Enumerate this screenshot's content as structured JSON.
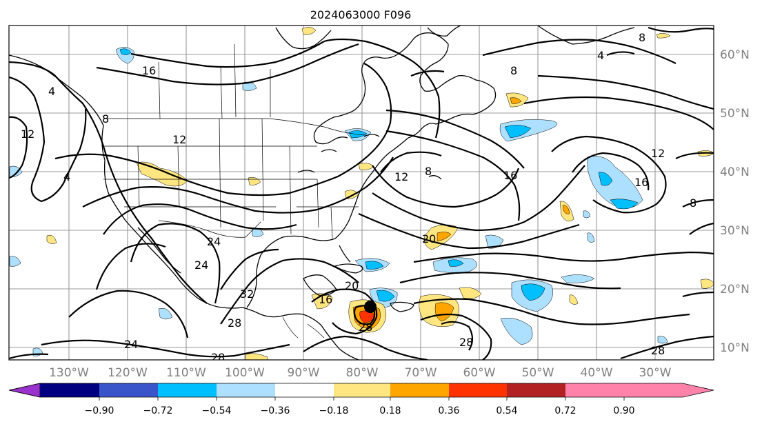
{
  "title": "2024063000 F096",
  "lon_labels": [
    "130°W",
    "120°W",
    "110°W",
    "100°W",
    "90°W",
    "80°W",
    "70°W",
    "60°W",
    "50°W",
    "40°W",
    "30°W"
  ],
  "lat_labels": [
    "60°N",
    "50°N",
    "40°N",
    "30°N",
    "20°N",
    "10°N"
  ],
  "colorbar": {
    "ticks": [
      "−0.90",
      "−0.72",
      "−0.54",
      "−0.36",
      "−0.18",
      "0.18",
      "0.36",
      "0.54",
      "0.72",
      "0.90"
    ],
    "colors": [
      "#9932CC",
      "#000080",
      "#3A55C9",
      "#00BFFF",
      "#ADDFFF",
      "#FFFFFF",
      "#FFE680",
      "#FFA500",
      "#FF3300",
      "#B22222",
      "#FF82AB"
    ]
  },
  "contour_labels": [
    "16",
    "4",
    "12",
    "8",
    "4",
    "12",
    "8",
    "4",
    "8",
    "12",
    "16",
    "8",
    "16",
    "12",
    "8",
    "20",
    "24",
    "24",
    "32",
    "28",
    "24",
    "28",
    "16",
    "20",
    "28",
    "28",
    "28"
  ],
  "storm_marker": "tropical-cyclone-center"
}
